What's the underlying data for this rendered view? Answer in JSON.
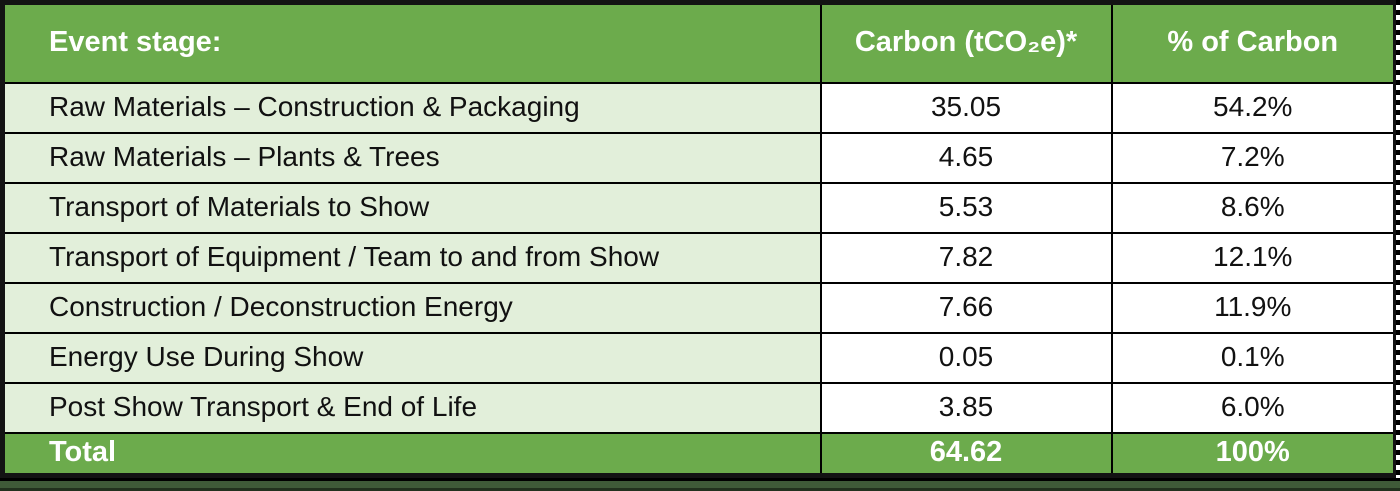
{
  "table": {
    "headers": {
      "stage": "Event stage:",
      "carbon": "Carbon (tCO₂e)*",
      "percent": "% of Carbon"
    },
    "rows": [
      {
        "stage": "Raw Materials – Construction & Packaging",
        "carbon": "35.05",
        "percent": "54.2%"
      },
      {
        "stage": "Raw Materials – Plants & Trees",
        "carbon": "4.65",
        "percent": "7.2%"
      },
      {
        "stage": "Transport of Materials to Show",
        "carbon": "5.53",
        "percent": "8.6%"
      },
      {
        "stage": "Transport of Equipment / Team to and from Show",
        "carbon": "7.82",
        "percent": "12.1%"
      },
      {
        "stage": "Construction / Deconstruction Energy",
        "carbon": "7.66",
        "percent": "11.9%"
      },
      {
        "stage": "Energy Use During Show",
        "carbon": "0.05",
        "percent": "0.1%"
      },
      {
        "stage": "Post Show Transport & End of Life",
        "carbon": "3.85",
        "percent": "6.0%"
      }
    ],
    "total": {
      "label": "Total",
      "carbon": "64.62",
      "percent": "100%"
    }
  },
  "colors": {
    "header_green": "#6cab4c",
    "row_light_green": "#e2efda",
    "border_black": "#000000",
    "bottom_strip_green": "#3f5a38",
    "text_white": "#ffffff",
    "text_black": "#111111"
  },
  "chart_data": {
    "type": "table",
    "title": "Event carbon footprint by stage",
    "columns": [
      "Event stage:",
      "Carbon (tCO₂e)*",
      "% of Carbon"
    ],
    "categories": [
      "Raw Materials – Construction & Packaging",
      "Raw Materials – Plants & Trees",
      "Transport of Materials to Show",
      "Transport of Equipment / Team to and from Show",
      "Construction / Deconstruction Energy",
      "Energy Use During Show",
      "Post Show Transport & End of Life"
    ],
    "series": [
      {
        "name": "Carbon (tCO₂e)",
        "values": [
          35.05,
          4.65,
          5.53,
          7.82,
          7.66,
          0.05,
          3.85
        ]
      },
      {
        "name": "% of Carbon",
        "values": [
          54.2,
          7.2,
          8.6,
          12.1,
          11.9,
          0.1,
          6.0
        ]
      }
    ],
    "total": {
      "carbon": 64.62,
      "percent": 100
    }
  }
}
